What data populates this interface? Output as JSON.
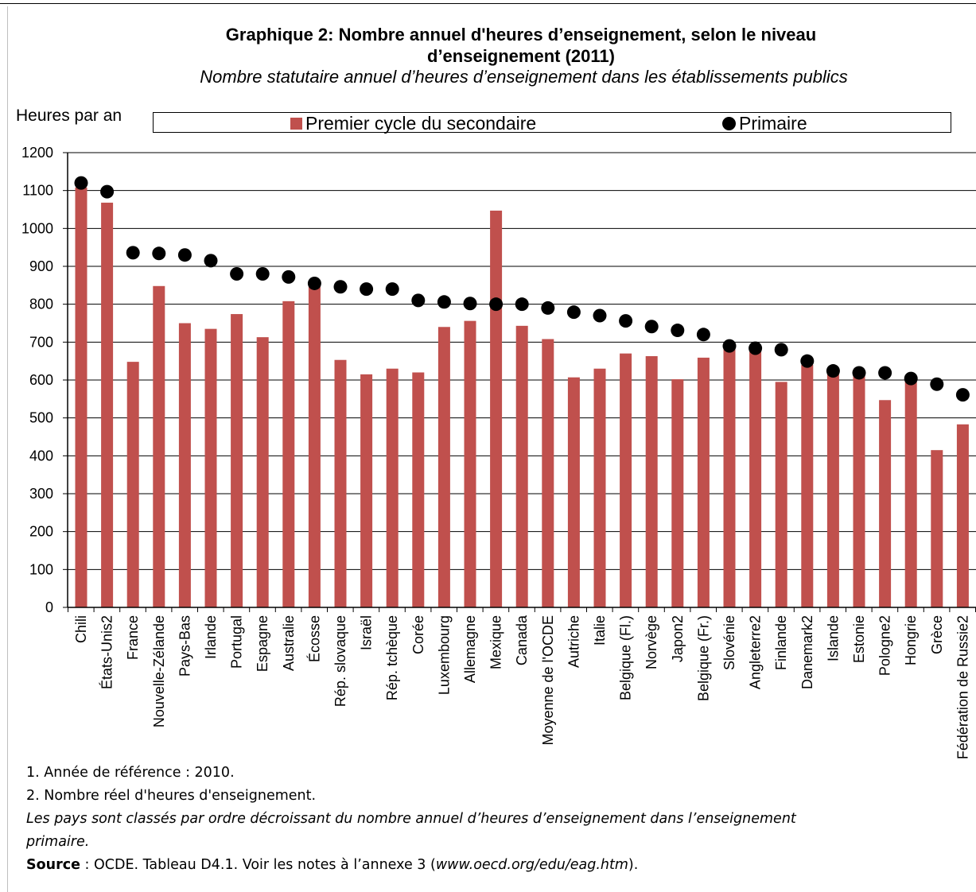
{
  "header": {
    "title_line1": "Graphique  2: Nombre annuel d'heures d’enseignement, selon le niveau",
    "title_line2": "d’enseignement (2011)",
    "subtitle": "Nombre statutaire annuel d’heures d’enseignement dans les établissements publics"
  },
  "notes": {
    "note1": "1. Année de référence : 2010.",
    "note2": "2. Nombre réel d'heures d'enseignement.",
    "italic_line1": "Les pays sont classés par ordre décroissant du nombre annuel d’heures d’enseignement dans l’enseignement",
    "italic_line2": "primaire.",
    "source_label": "Source",
    "source_text": " : OCDE. Tableau D4.1. Voir les notes à l’annexe 3 (",
    "source_url": "www.oecd.org/edu/eag.htm",
    "source_end": ")."
  },
  "chart_data": {
    "type": "bar",
    "title": "Graphique  2: Nombre annuel d'heures d’enseignement, selon le niveau d’enseignement (2011)",
    "subtitle": "Nombre statutaire annuel d’heures d’enseignement dans les établissements publics",
    "ylabel": "Heures par an",
    "xlabel": "",
    "ylim": [
      0,
      1200
    ],
    "yticks": [
      0,
      100,
      200,
      300,
      400,
      500,
      600,
      700,
      800,
      900,
      1000,
      1100,
      1200
    ],
    "grid": true,
    "legend": "top",
    "categories": [
      "Chili",
      "États-Unis2",
      "France",
      "Nouvelle-Zélande",
      "Pays-Bas",
      "Irlande",
      "Portugal",
      "Espagne",
      "Australie",
      "Écosse",
      "Rép. slovaque",
      "Israël",
      "Rép. tchèque",
      "Corée",
      "Luxembourg",
      "Allemagne",
      "Mexique",
      "Canada",
      "Moyenne de l'OCDE",
      "Autriche",
      "Italie",
      "Belgique (Fl.)",
      "Norvège",
      "Japon2",
      "Belgique (Fr.)",
      "Slovénie",
      "Angleterre2",
      "Finlande",
      "Danemark2",
      "Islande",
      "Estonie",
      "Pologne2",
      "Hongrie",
      "Grèce",
      "Fédération de Russie2"
    ],
    "series": [
      {
        "name": "Premier cycle du secondaire",
        "kind": "bar",
        "color": "#C0504D",
        "values": [
          1108,
          1068,
          648,
          848,
          750,
          735,
          774,
          713,
          808,
          855,
          653,
          615,
          630,
          620,
          740,
          756,
          1047,
          743,
          708,
          607,
          630,
          670,
          663,
          602,
          659,
          690,
          684,
          595,
          640,
          623,
          612,
          547,
          605,
          415,
          483
        ]
      },
      {
        "name": "Primaire",
        "kind": "dot",
        "color": "#000000",
        "values": [
          1120,
          1097,
          936,
          934,
          930,
          915,
          880,
          880,
          872,
          855,
          846,
          840,
          840,
          810,
          806,
          802,
          800,
          800,
          790,
          779,
          770,
          756,
          741,
          731,
          720,
          690,
          684,
          680,
          650,
          624,
          619,
          619,
          604,
          589,
          561
        ]
      }
    ]
  }
}
